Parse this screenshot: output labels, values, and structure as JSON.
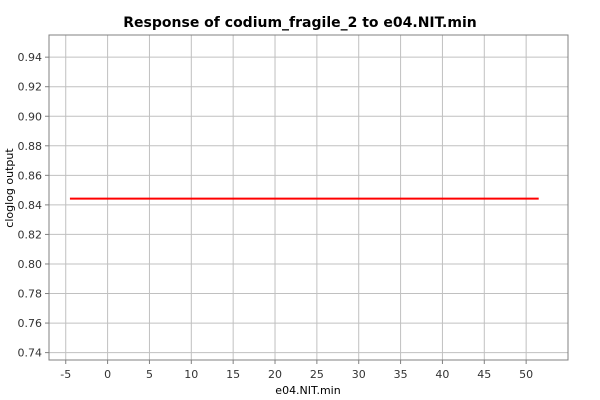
{
  "chart_data": {
    "type": "line",
    "title": "Response of codium_fragile_2 to e04.NIT.min",
    "xlabel": "e04.NIT.min",
    "ylabel": "cloglog output",
    "xlim": [
      -7,
      55
    ],
    "ylim": [
      0.735,
      0.955
    ],
    "xticks": [
      -5,
      0,
      5,
      10,
      15,
      20,
      25,
      30,
      35,
      40,
      45,
      50
    ],
    "yticks": [
      0.74,
      0.76,
      0.78,
      0.8,
      0.82,
      0.84,
      0.86,
      0.88,
      0.9,
      0.92,
      0.94
    ],
    "ytick_labels": [
      "0.74",
      "0.76",
      "0.78",
      "0.80",
      "0.82",
      "0.84",
      "0.86",
      "0.88",
      "0.90",
      "0.92",
      "0.94"
    ],
    "grid": true,
    "series": [
      {
        "x": [
          -4.5,
          51.5
        ],
        "y": [
          0.8442,
          0.8442
        ],
        "color": "#ff0000"
      }
    ]
  }
}
